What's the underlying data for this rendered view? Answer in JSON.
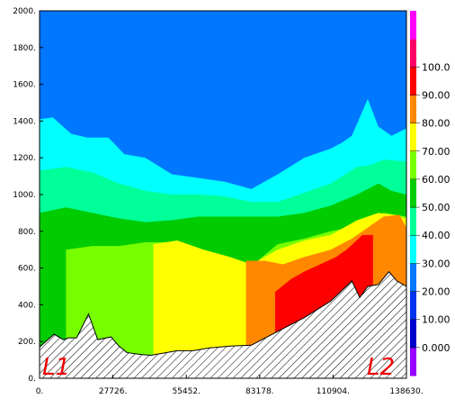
{
  "chart_data": {
    "type": "heatmap",
    "title": "",
    "xlabel": "",
    "ylabel": "",
    "xlim": [
      0,
      138630
    ],
    "ylim": [
      0,
      2000
    ],
    "x_ticks": [
      "0.",
      "27726.",
      "55452.",
      "83178.",
      "110904.",
      "138630."
    ],
    "y_ticks": [
      "0.",
      "200.",
      "400.",
      "600.",
      "800.",
      "1000.",
      "1200.",
      "1400.",
      "1600.",
      "1800.",
      "2000."
    ],
    "end_labels": {
      "left": "L1",
      "right": "L2"
    },
    "colorbar": {
      "labels": [
        "0.000",
        "10.00",
        "20.00",
        "30.00",
        "40.00",
        "50.00",
        "60.00",
        "70.00",
        "80.00",
        "90.00",
        "100.0"
      ],
      "colors": [
        "#9900ff",
        "#0000cc",
        "#0033ee",
        "#0077ff",
        "#00ffff",
        "#00ff99",
        "#00cc00",
        "#77ff00",
        "#ffff00",
        "#ff8800",
        "#ff0000",
        "#ff0066",
        "#ff00ff"
      ]
    },
    "terrain_profile": {
      "x": [
        0,
        5500,
        9000,
        11000,
        14000,
        18500,
        22000,
        27000,
        30000,
        33000,
        38000,
        42000,
        46000,
        52000,
        58000,
        64000,
        72000,
        80000,
        90000,
        100000,
        110000,
        118000,
        121000,
        124000,
        128000,
        132000,
        135000,
        138630
      ],
      "y": [
        170,
        240,
        210,
        220,
        220,
        350,
        210,
        225,
        175,
        140,
        130,
        125,
        135,
        150,
        150,
        165,
        175,
        180,
        255,
        330,
        420,
        530,
        440,
        500,
        510,
        580,
        530,
        500
      ]
    },
    "contour_regions": [
      {
        "level": "20-30",
        "color": "#0077ff",
        "boundary_x": [
          0,
          138630
        ],
        "boundary_y": [
          2000,
          2000
        ]
      },
      {
        "level": "30-40",
        "color": "#00ffff",
        "top_x": [
          0,
          5000,
          12000,
          18000,
          26000,
          32000,
          40000,
          50000,
          60000,
          70000,
          80000,
          90000,
          100000,
          110000,
          114000,
          118000,
          124000,
          128000,
          133000,
          138630
        ],
        "top_y": [
          1410,
          1420,
          1330,
          1310,
          1310,
          1220,
          1200,
          1110,
          1090,
          1070,
          1030,
          1110,
          1200,
          1250,
          1280,
          1320,
          1520,
          1370,
          1320,
          1360
        ]
      },
      {
        "level": "40-50",
        "color": "#00ff99",
        "top_x": [
          0,
          10000,
          20000,
          30000,
          40000,
          50000,
          60000,
          70000,
          80000,
          90000,
          100000,
          110000,
          120000,
          125000,
          130000,
          138630
        ],
        "top_y": [
          1130,
          1150,
          1120,
          1060,
          1020,
          1000,
          1000,
          990,
          960,
          960,
          1010,
          1060,
          1150,
          1160,
          1190,
          1180
        ]
      },
      {
        "level": "50-60",
        "color": "#00cc00",
        "top_x": [
          0,
          10000,
          20000,
          30000,
          40000,
          50000,
          60000,
          70000,
          80000,
          90000,
          100000,
          110000,
          120000,
          128000,
          133000,
          138630
        ],
        "top_y": [
          900,
          930,
          900,
          870,
          850,
          860,
          880,
          880,
          880,
          880,
          900,
          940,
          1000,
          1060,
          1020,
          1000
        ]
      },
      {
        "level": "60-70",
        "color": "#77ff00",
        "top_x": [
          10000,
          20000,
          30000,
          40000,
          50000,
          60000,
          70000,
          80000,
          90000,
          100000,
          110000,
          120000,
          130000,
          138630
        ],
        "top_y": [
          700,
          720,
          720,
          740,
          740,
          690,
          650,
          610,
          730,
          760,
          800,
          830,
          900,
          880
        ]
      },
      {
        "level": "70-80",
        "color": "#ffff00",
        "top_x": [
          43000,
          52000,
          62000,
          72000,
          80000,
          90000,
          100000,
          110000,
          120000,
          128000,
          134000,
          138630
        ],
        "top_y": [
          730,
          750,
          700,
          660,
          620,
          700,
          750,
          780,
          860,
          900,
          890,
          870
        ]
      },
      {
        "level": "80-90",
        "color": "#ff8800",
        "top_x": [
          78000,
          85000,
          92000,
          100000,
          110000,
          118000,
          124000,
          130000,
          136000,
          138630
        ],
        "top_y": [
          640,
          640,
          620,
          660,
          700,
          760,
          820,
          880,
          890,
          820
        ]
      },
      {
        "level": "90-100",
        "color": "#ff0000",
        "top_x": [
          89000,
          95000,
          100000,
          106000,
          112000,
          116000,
          122000,
          126000
        ],
        "top_y": [
          470,
          540,
          580,
          620,
          660,
          700,
          780,
          780
        ]
      }
    ]
  }
}
